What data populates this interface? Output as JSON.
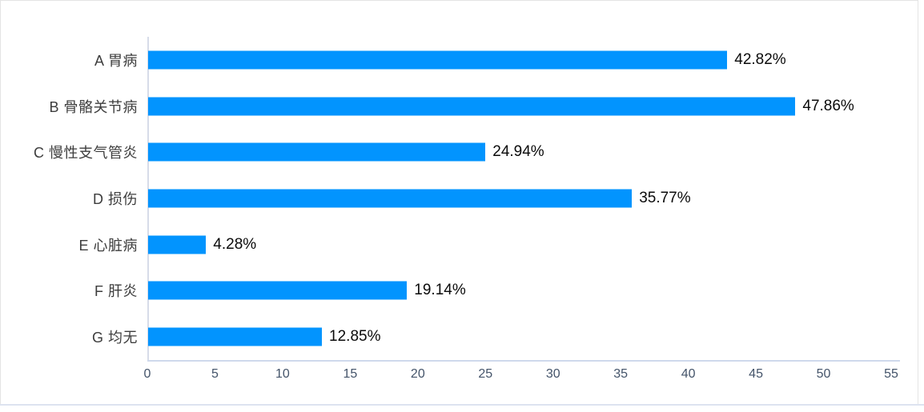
{
  "chart_data": {
    "type": "bar",
    "orientation": "horizontal",
    "title": "",
    "xlabel": "",
    "ylabel": "",
    "categories": [
      "A 胃病",
      "B 骨骼关节病",
      "C 慢性支气管炎",
      "D 损伤",
      "E 心脏病",
      "F 肝炎",
      "G 均无"
    ],
    "values": [
      42.82,
      47.86,
      24.94,
      35.77,
      4.28,
      19.14,
      12.85
    ],
    "data_labels": [
      "42.82%",
      "47.86%",
      "24.94%",
      "35.77%",
      "4.28%",
      "19.14%",
      "12.85%"
    ],
    "x_ticks": [
      "0",
      "5",
      "10",
      "15",
      "20",
      "25",
      "30",
      "35",
      "40",
      "45",
      "50",
      "55"
    ],
    "xlim": [
      0,
      55
    ],
    "grid": false,
    "legend": false,
    "bar_color": "#0294fe"
  },
  "colors": {
    "bar": "#0294fe",
    "axis_line_vertical": "#d7dce9",
    "axis_line_horizontal": "#cfd9ec",
    "tick_label": "#44546a",
    "category_label": "#3d3d3d",
    "data_label": "#0a0a0a",
    "frame_border": "#e4e4e4",
    "bottom_rule": "#dde3f0"
  }
}
